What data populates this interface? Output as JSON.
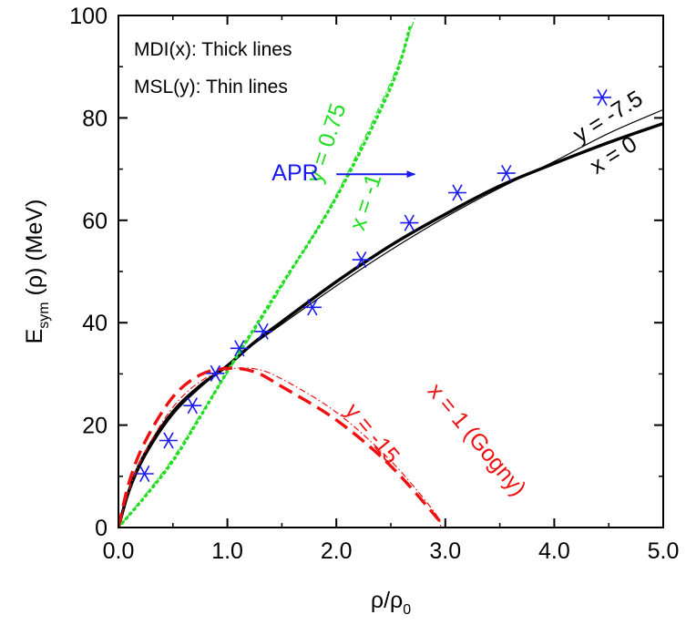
{
  "chart_data": {
    "type": "line",
    "xlabel": {
      "base": "ρ/ρ",
      "sub": "0"
    },
    "ylabel": {
      "pre": "E",
      "sub": "sym",
      "post": " (ρ) (MeV)"
    },
    "xlim": [
      0,
      5
    ],
    "ylim": [
      0,
      100
    ],
    "xticks": [
      0,
      1,
      2,
      3,
      4,
      5
    ],
    "xtick_labels": [
      "0.0",
      "1.0",
      "2.0",
      "3.0",
      "4.0",
      "5.0"
    ],
    "yticks": [
      0,
      20,
      40,
      60,
      80,
      100
    ],
    "ytick_labels": [
      "0",
      "20",
      "40",
      "60",
      "80",
      "100"
    ],
    "notes": [
      "MDI(x): Thick lines",
      "MSL(y): Thin lines"
    ],
    "colors": {
      "black": "#000000",
      "green": "#22dd22",
      "red": "#ee1111",
      "blue": "#1a1aee"
    },
    "series": [
      {
        "id": "mdi-x0",
        "family": "MDI",
        "label": "x = 0",
        "color": "#000000",
        "style": "solid-thick",
        "x": [
          0,
          0.1,
          0.25,
          0.5,
          0.75,
          1.0,
          1.25,
          1.5,
          2.0,
          2.5,
          3.0,
          3.5,
          4.0,
          4.5,
          5.0
        ],
        "y": [
          0,
          7.4,
          14.7,
          22.6,
          27.7,
          31.6,
          36.2,
          40.2,
          48.0,
          55.1,
          61.2,
          66.7,
          71.1,
          75.2,
          78.9
        ]
      },
      {
        "id": "msl-y-7.5",
        "family": "MSL",
        "label": "y = -7.5",
        "color": "#000000",
        "style": "solid-thin",
        "x": [
          0,
          0.1,
          0.25,
          0.5,
          0.75,
          1.0,
          1.25,
          1.5,
          2.0,
          2.5,
          3.0,
          3.5,
          4.0,
          4.5,
          5.0
        ],
        "y": [
          0,
          6.9,
          14.0,
          22.0,
          27.3,
          31.6,
          35.9,
          39.7,
          47.2,
          54.2,
          60.6,
          66.3,
          71.5,
          77.0,
          81.6
        ]
      },
      {
        "id": "mdi-x-1",
        "family": "MDI",
        "label": "x = -1",
        "color": "#22dd22",
        "style": "dotted-thick",
        "x": [
          0,
          0.25,
          0.5,
          0.75,
          1.0,
          1.25,
          1.5,
          2.0,
          2.5,
          2.68
        ],
        "y": [
          0,
          6.2,
          13.0,
          21.6,
          30.5,
          39.0,
          47.5,
          64.5,
          86.0,
          98.0
        ]
      },
      {
        "id": "msl-y0.75",
        "family": "MSL",
        "label": "y = 0.75",
        "color": "#22dd22",
        "style": "dashdot-thin",
        "x": [
          0,
          0.25,
          0.5,
          0.75,
          1.0,
          1.25,
          1.5,
          2.0,
          2.5,
          2.72
        ],
        "y": [
          0,
          6.5,
          13.5,
          22.0,
          30.2,
          38.5,
          47.0,
          65.0,
          87.0,
          99.5
        ]
      },
      {
        "id": "mdi-x1",
        "family": "MDI",
        "label": "x = 1 (Gogny)",
        "color": "#ee1111",
        "style": "dashed-thick",
        "x": [
          0,
          0.1,
          0.25,
          0.5,
          0.75,
          1.0,
          1.25,
          1.5,
          2.0,
          2.5,
          3.0
        ],
        "y": [
          0,
          9.0,
          17.0,
          25.5,
          29.8,
          31.1,
          30.4,
          27.5,
          21.0,
          12.0,
          0
        ]
      },
      {
        "id": "msl-y-15",
        "family": "MSL",
        "label": "y = -15",
        "color": "#ee1111",
        "style": "dashdot-thin",
        "x": [
          0,
          0.1,
          0.25,
          0.5,
          0.75,
          1.0,
          1.25,
          1.5,
          2.0,
          2.5,
          2.9,
          2.96
        ],
        "y": [
          0,
          7.5,
          15.0,
          23.5,
          28.5,
          30.8,
          31.0,
          29.0,
          22.5,
          13.0,
          3.0,
          0
        ]
      }
    ],
    "curve_labels": [
      {
        "series": "msl-y-7.5",
        "text": "y = -7.5",
        "color": "#000000",
        "x": 4.5,
        "y": 80,
        "angle": -32
      },
      {
        "series": "mdi-x0",
        "text": "x = 0",
        "color": "#000000",
        "x": 4.55,
        "y": 72.5,
        "angle": -32
      },
      {
        "series": "msl-y0.75",
        "text": "y = 0.75",
        "color": "#22dd22",
        "x": 1.92,
        "y": 75,
        "angle": -72
      },
      {
        "series": "mdi-x-1",
        "text": "x = -1",
        "color": "#22dd22",
        "x": 2.28,
        "y": 63.5,
        "angle": -72
      },
      {
        "series": "mdi-x1",
        "text": "x = 1 (Gogny)",
        "color": "#ee1111",
        "x": 3.28,
        "y": 17.0,
        "angle": 50
      },
      {
        "series": "msl-y-15",
        "text": "y = -15",
        "color": "#ee1111",
        "x": 2.32,
        "y": 18.2,
        "angle": 50
      }
    ],
    "apr": {
      "label": "APR",
      "color": "#1a1aee",
      "arrow_from": [
        2.0,
        69.0
      ],
      "arrow_to": [
        2.72,
        69.0
      ],
      "label_x": 1.82,
      "label_y": 69.0,
      "points": [
        {
          "x": 0.24,
          "y": 10.5
        },
        {
          "x": 0.46,
          "y": 17.0
        },
        {
          "x": 0.68,
          "y": 23.8
        },
        {
          "x": 0.89,
          "y": 30.1
        },
        {
          "x": 1.11,
          "y": 35.0
        },
        {
          "x": 1.33,
          "y": 38.3
        },
        {
          "x": 1.78,
          "y": 43.0
        },
        {
          "x": 2.23,
          "y": 52.3
        },
        {
          "x": 2.67,
          "y": 59.5
        },
        {
          "x": 3.11,
          "y": 65.4
        },
        {
          "x": 3.56,
          "y": 69.2
        },
        {
          "x": 4.44,
          "y": 84.0
        }
      ]
    }
  }
}
